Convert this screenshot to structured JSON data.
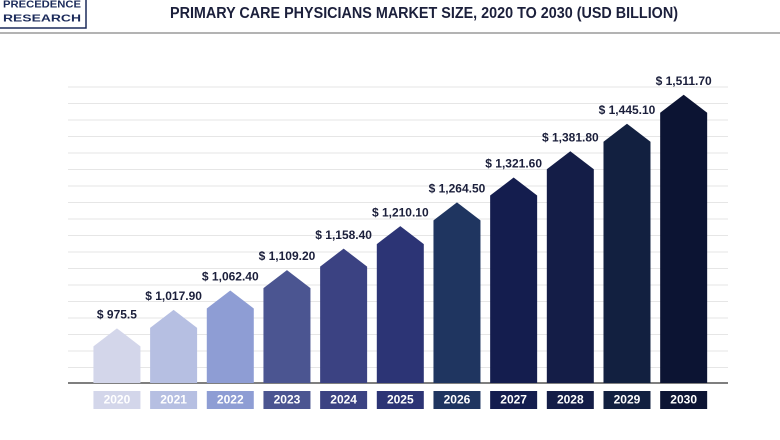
{
  "logo": [
    "PRECEDENCE",
    "RESEARCH"
  ],
  "chart_data": {
    "type": "bar",
    "title": "PRIMARY CARE PHYSICIANS MARKET SIZE, 2020 TO 2030 (USD BILLION)",
    "categories": [
      "2020",
      "2021",
      "2022",
      "2023",
      "2024",
      "2025",
      "2026",
      "2027",
      "2028",
      "2029",
      "2030"
    ],
    "values": [
      975.5,
      1017.9,
      1062.4,
      1109.2,
      1158.4,
      1210.1,
      1264.5,
      1321.6,
      1381.8,
      1445.1,
      1511.7
    ],
    "value_labels": [
      "$ 975.5",
      "$ 1,017.90",
      "$ 1,062.40",
      "$ 1,109.20",
      "$ 1,158.40",
      "$ 1,210.10",
      "$ 1,264.50",
      "$ 1,321.60",
      "$ 1,381.80",
      "$ 1,445.10",
      "$ 1,511.70"
    ],
    "colors": [
      "#d3d6ea",
      "#b6bfe2",
      "#8e9dd4",
      "#4b5591",
      "#3b4282",
      "#2c3475",
      "#1f3560",
      "#141d4e",
      "#141d47",
      "#122040",
      "#0c1433"
    ],
    "ylim": [
      850,
      1550
    ]
  }
}
